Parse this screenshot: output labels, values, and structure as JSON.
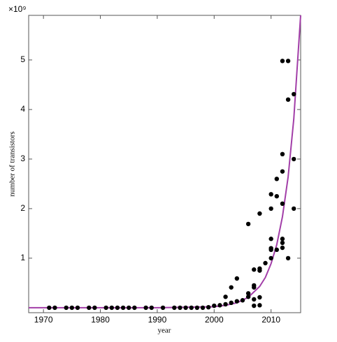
{
  "chart_data": {
    "type": "scatter",
    "xlabel": "year",
    "ylabel": "number of transistors",
    "y_multiplier": "×10⁹",
    "xlim": [
      1967.4,
      2015.2
    ],
    "ylim": [
      -0.1,
      5.9
    ],
    "xticks": [
      1970,
      1980,
      1990,
      2000,
      2010
    ],
    "yticks": [
      1,
      2,
      3,
      4,
      5
    ],
    "points": {
      "color": "#000000",
      "x": [
        1971,
        1972,
        1974,
        1975,
        1976,
        1978,
        1979,
        1981,
        1982,
        1983,
        1984,
        1985,
        1986,
        1988,
        1989,
        1991,
        1993,
        1994,
        1995,
        1996,
        1997,
        1998,
        1999,
        2000,
        2001,
        2002,
        2002,
        2003,
        2003,
        2004,
        2004,
        2005,
        2006,
        2006,
        2006,
        2007,
        2007,
        2007,
        2007,
        2007,
        2008,
        2008,
        2008,
        2008,
        2008,
        2009,
        2010,
        2010,
        2010,
        2010,
        2010,
        2010,
        2011,
        2011,
        2011,
        2012,
        2012,
        2012,
        2012,
        2012,
        2012,
        2012,
        2013,
        2013,
        2013,
        2014,
        2014,
        2014
      ],
      "values": [
        0,
        0,
        0,
        0,
        0,
        0,
        0,
        0,
        0,
        0,
        0,
        0,
        0,
        0,
        0,
        0,
        0,
        0,
        0,
        0,
        0,
        0,
        0.01,
        0.04,
        0.05,
        0.22,
        0.07,
        0.41,
        0.1,
        0.59,
        0.13,
        0.15,
        1.69,
        0.22,
        0.29,
        0.77,
        0.45,
        0.41,
        0.04,
        0.17,
        1.9,
        0.75,
        0.79,
        0.05,
        0.21,
        0.9,
        2.29,
        2.0,
        1.39,
        1.2,
        1.17,
        1.0,
        2.6,
        2.25,
        1.17,
        4.98,
        3.1,
        2.75,
        2.1,
        1.39,
        1.31,
        1.21,
        4.98,
        4.2,
        1.0,
        4.31,
        3.0,
        2.0
      ]
    },
    "fit": {
      "color": "#a23ea8",
      "x": [
        1967.4,
        1990,
        2000,
        2002,
        2004,
        2006,
        2008,
        2009,
        2010,
        2011,
        2012,
        2013,
        2014,
        2015.2
      ],
      "values": [
        0,
        0,
        0.02,
        0.05,
        0.1,
        0.21,
        0.43,
        0.61,
        0.89,
        1.27,
        1.84,
        2.64,
        3.81,
        5.9
      ]
    }
  }
}
